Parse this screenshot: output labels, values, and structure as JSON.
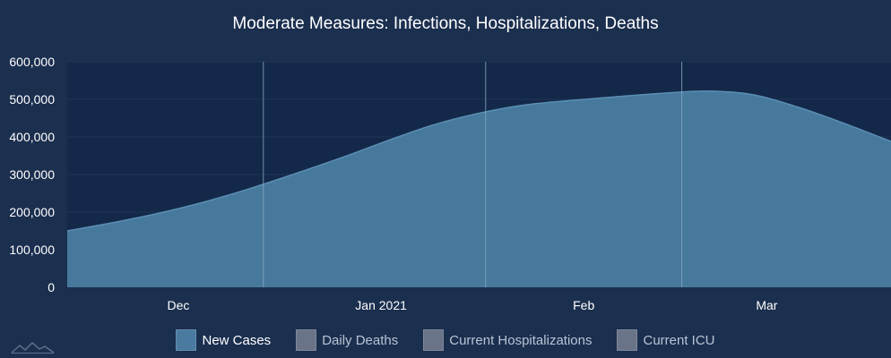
{
  "colors": {
    "background": "#1b2f4f",
    "plot_background": "#142949",
    "grid": "#1f3558",
    "area_fill": "#46799b",
    "area_line": "#5b8fb4",
    "event_line": "#8aa9c4",
    "legend_active": "#4a7aa0",
    "legend_inactive": "#6a7488"
  },
  "chart_data": {
    "type": "area",
    "title": "Moderate Measures: Infections, Hospitalizations, Deaths",
    "xlabel": "",
    "ylabel": "",
    "y_ticks": [
      "0",
      "100,000",
      "200,000",
      "300,000",
      "400,000",
      "500,000",
      "600,000"
    ],
    "ylim": [
      0,
      600000
    ],
    "xlim": [
      "2020-11-14",
      "2021-03-20"
    ],
    "x_ticks": [
      {
        "date": "2020-12-01",
        "label": "Dec"
      },
      {
        "date": "2021-01-01",
        "label": "Jan 2021"
      },
      {
        "date": "2021-02-01",
        "label": "Feb"
      },
      {
        "date": "2021-03-01",
        "label": "Mar"
      }
    ],
    "event_lines": [
      "2020-12-14",
      "2021-01-17",
      "2021-02-16"
    ],
    "grid": true,
    "legend_position": "bottom",
    "series": [
      {
        "name": "New Cases",
        "active": true,
        "points": [
          {
            "x": "2020-11-14",
            "y": 150000
          },
          {
            "x": "2020-11-21",
            "y": 172000
          },
          {
            "x": "2020-11-28",
            "y": 197000
          },
          {
            "x": "2020-12-05",
            "y": 227000
          },
          {
            "x": "2020-12-12",
            "y": 263000
          },
          {
            "x": "2020-12-19",
            "y": 303000
          },
          {
            "x": "2020-12-26",
            "y": 345000
          },
          {
            "x": "2021-01-02",
            "y": 390000
          },
          {
            "x": "2021-01-09",
            "y": 432000
          },
          {
            "x": "2021-01-16",
            "y": 463000
          },
          {
            "x": "2021-01-23",
            "y": 485000
          },
          {
            "x": "2021-01-30",
            "y": 497000
          },
          {
            "x": "2021-02-06",
            "y": 507000
          },
          {
            "x": "2021-02-13",
            "y": 516000
          },
          {
            "x": "2021-02-20",
            "y": 522000
          },
          {
            "x": "2021-02-27",
            "y": 512000
          },
          {
            "x": "2021-03-06",
            "y": 478000
          },
          {
            "x": "2021-03-13",
            "y": 435000
          },
          {
            "x": "2021-03-20",
            "y": 388000
          }
        ]
      },
      {
        "name": "Daily Deaths",
        "active": false
      },
      {
        "name": "Current Hospitalizations",
        "active": false
      },
      {
        "name": "Current ICU",
        "active": false
      }
    ]
  }
}
